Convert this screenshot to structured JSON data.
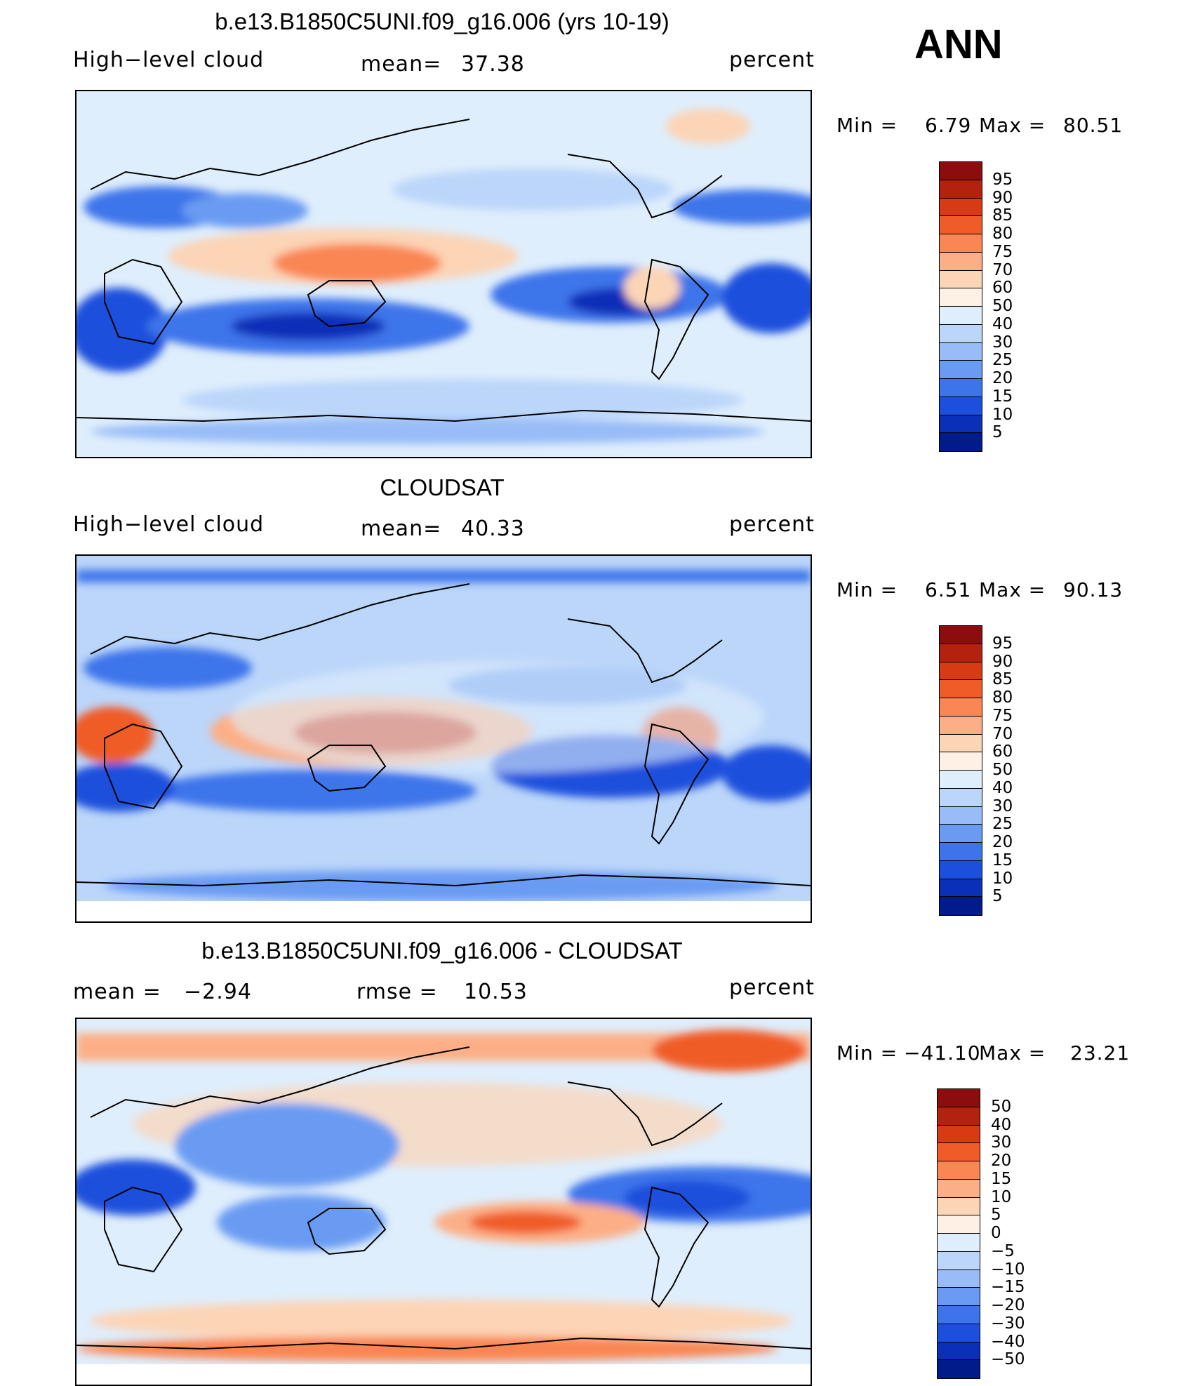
{
  "header": {
    "season": "ANN"
  },
  "panels": [
    {
      "id": "model",
      "title": "b.e13.B1850C5UNI.f09_g16.006 (yrs 10-19)",
      "left_label": "High−level cloud",
      "center_label": "mean=",
      "center_value": "37.38",
      "right_label": "percent",
      "min_label": "Min =",
      "min_value": "6.79",
      "max_label": "Max =",
      "max_value": "80.51",
      "colorbar": {
        "labels": [
          "95",
          "90",
          "85",
          "80",
          "75",
          "70",
          "60",
          "50",
          "40",
          "30",
          "25",
          "20",
          "15",
          "10",
          "5"
        ],
        "colors": [
          "#8c0d0d",
          "#b3220f",
          "#d83b14",
          "#f05c28",
          "#f98653",
          "#fcaf86",
          "#fcd4b6",
          "#fdf0e4",
          "#dfeefc",
          "#bcd6fa",
          "#97bcf7",
          "#6a9bf2",
          "#3e74ea",
          "#1c4fdc",
          "#0a2fb8",
          "#001b8a"
        ]
      }
    },
    {
      "id": "obs",
      "title": "CLOUDSAT",
      "left_label": "High−level cloud",
      "center_label": "mean=",
      "center_value": "40.33",
      "right_label": "percent",
      "min_label": "Min =",
      "min_value": "6.51",
      "max_label": "Max =",
      "max_value": "90.13",
      "colorbar": {
        "labels": [
          "95",
          "90",
          "85",
          "80",
          "75",
          "70",
          "60",
          "50",
          "40",
          "30",
          "25",
          "20",
          "15",
          "10",
          "5"
        ],
        "colors": [
          "#8c0d0d",
          "#b3220f",
          "#d83b14",
          "#f05c28",
          "#f98653",
          "#fcaf86",
          "#fcd4b6",
          "#fdf0e4",
          "#dfeefc",
          "#bcd6fa",
          "#97bcf7",
          "#6a9bf2",
          "#3e74ea",
          "#1c4fdc",
          "#0a2fb8",
          "#001b8a"
        ]
      }
    },
    {
      "id": "diff",
      "title": "b.e13.B1850C5UNI.f09_g16.006 - CLOUDSAT",
      "left_label": "mean =",
      "left_value": "−2.94",
      "center_label": "rmse =",
      "center_value": "10.53",
      "right_label": "percent",
      "min_label": "Min =",
      "min_value": "−41.10",
      "max_label": "Max =",
      "max_value": "23.21",
      "colorbar": {
        "labels": [
          "50",
          "40",
          "30",
          "20",
          "15",
          "10",
          "5",
          "0",
          "−5",
          "−10",
          "−15",
          "−20",
          "−30",
          "−40",
          "−50"
        ],
        "colors": [
          "#8c0d0d",
          "#b3220f",
          "#d83b14",
          "#f05c28",
          "#f98653",
          "#fcaf86",
          "#fcd4b6",
          "#fdf0e4",
          "#dfeefc",
          "#bcd6fa",
          "#97bcf7",
          "#6a9bf2",
          "#3e74ea",
          "#1c4fdc",
          "#0a2fb8",
          "#001b8a"
        ]
      }
    }
  ]
}
